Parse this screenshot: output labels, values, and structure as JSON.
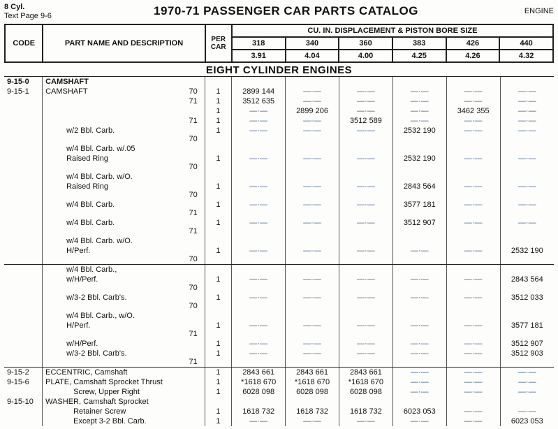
{
  "meta": {
    "cyl": "8 Cyl.",
    "pageref": "Text Page 9-6",
    "title": "1970-71 PASSENGER CAR PARTS CATALOG",
    "engine": "ENGINE"
  },
  "hdr": {
    "code": "CODE",
    "desc": "PART NAME AND DESCRIPTION",
    "per": "PER CAR",
    "disp_title": "CU. IN. DISPLACEMENT & PISTON BORE SIZE",
    "cols": [
      "318",
      "340",
      "360",
      "383",
      "426",
      "440"
    ],
    "bores": [
      "3.91",
      "4.04",
      "4.00",
      "4.25",
      "4.26",
      "4.32"
    ]
  },
  "section_title": "EIGHT CYLINDER ENGINES",
  "group": {
    "code": "9-15-0",
    "name": "CAMSHAFT"
  },
  "rows": [
    {
      "code": "9-15-1",
      "desc": "CAMSHAFT",
      "year": "70",
      "per": "1",
      "c": [
        "2899 144",
        "—·—",
        "—·—",
        "—·—",
        "—·—",
        "—·—"
      ]
    },
    {
      "code": "",
      "desc": "",
      "year": "71",
      "per": "1",
      "c": [
        "3512 635",
        "—·—",
        "—·—",
        "—·—",
        "—·—",
        "—·—"
      ]
    },
    {
      "code": "",
      "desc": "",
      "year": "",
      "per": "1",
      "c": [
        "—·—",
        "2899 206",
        "—·—",
        "—·—",
        "3462 355",
        "—·—"
      ]
    },
    {
      "code": "",
      "desc": "",
      "year": "71",
      "per": "1",
      "c": [
        "—·—",
        "—·—",
        "3512 589",
        "—·—",
        "—·—",
        "—·—"
      ]
    },
    {
      "code": "",
      "desc": "w/2 Bbl. Carb.",
      "indent": 1,
      "year": "70",
      "per": "1",
      "c": [
        "—·—",
        "—·—",
        "—·—",
        "2532 190",
        "—·—",
        "—·—"
      ]
    },
    {
      "code": "",
      "desc": "w/4 Bbl. Carb. w/.05",
      "indent": 1,
      "year": "",
      "per": "",
      "c": [
        "",
        "",
        "",
        "",
        "",
        ""
      ]
    },
    {
      "code": "",
      "desc": "Raised Ring",
      "indent": 1,
      "year": "70",
      "per": "1",
      "c": [
        "—·—",
        "—·—",
        "—·—",
        "2532 190",
        "—·—",
        "—·—"
      ]
    },
    {
      "code": "",
      "desc": "w/4 Bbl. Carb. w/O.",
      "indent": 1,
      "year": "",
      "per": "",
      "c": [
        "",
        "",
        "",
        "",
        "",
        ""
      ]
    },
    {
      "code": "",
      "desc": "Raised Ring",
      "indent": 1,
      "year": "70",
      "per": "1",
      "c": [
        "—·—",
        "—·—",
        "—·—",
        "2843 564",
        "—·—",
        "—·—"
      ]
    },
    {
      "code": "",
      "desc": "w/4 Bbl. Carb.",
      "indent": 1,
      "year": "71",
      "per": "1",
      "c": [
        "—·—",
        "—·—",
        "—·—",
        "3577 181",
        "—·—",
        "—·—"
      ]
    },
    {
      "code": "",
      "desc": "w/4 Bbl. Carb.",
      "indent": 1,
      "year": "71",
      "per": "1",
      "c": [
        "—·—",
        "—·—",
        "—·—",
        "3512 907",
        "—·—",
        "—·—"
      ]
    },
    {
      "code": "",
      "desc": "w/4 Bbl. Carb. w/O.",
      "indent": 1,
      "year": "",
      "per": "",
      "c": [
        "",
        "",
        "",
        "",
        "",
        ""
      ]
    },
    {
      "code": "",
      "desc": "H/Perf.",
      "indent": 1,
      "year": "70",
      "per": "1",
      "c": [
        "—·—",
        "—·—",
        "—·—",
        "—·—",
        "—·—",
        "2532 190"
      ],
      "rule": true
    },
    {
      "code": "",
      "desc": "w/4 Bbl. Carb.,",
      "indent": 1,
      "year": "",
      "per": "",
      "c": [
        "",
        "",
        "",
        "",
        "",
        ""
      ]
    },
    {
      "code": "",
      "desc": "w/H/Perf.",
      "indent": 1,
      "year": "70",
      "per": "1",
      "c": [
        "—·—",
        "—·—",
        "—·—",
        "—·—",
        "—·—",
        "2843 564"
      ]
    },
    {
      "code": "",
      "desc": "w/3-2 Bbl. Carb's.",
      "indent": 1,
      "year": "70",
      "per": "1",
      "c": [
        "—·—",
        "—·—",
        "—·—",
        "—·—",
        "—·—",
        "3512 033"
      ]
    },
    {
      "code": "",
      "desc": "w/4 Bbl. Carb., w/O.",
      "indent": 1,
      "year": "",
      "per": "",
      "c": [
        "",
        "",
        "",
        "",
        "",
        ""
      ]
    },
    {
      "code": "",
      "desc": "H/Perf.",
      "indent": 1,
      "year": "71",
      "per": "1",
      "c": [
        "—·—",
        "—·—",
        "—·—",
        "—·—",
        "—·—",
        "3577 181"
      ]
    },
    {
      "code": "",
      "desc": "w/H/Perf.",
      "indent": 1,
      "year": "",
      "per": "1",
      "c": [
        "—·—",
        "—·—",
        "—·—",
        "—·—",
        "—·—",
        "3512 907"
      ]
    },
    {
      "code": "",
      "desc": "w/3-2 Bbl. Carb's.",
      "indent": 1,
      "year": "71",
      "per": "1",
      "c": [
        "—·—",
        "—·—",
        "—·—",
        "—·—",
        "—·—",
        "3512 903"
      ],
      "rule": true
    },
    {
      "code": "9-15-2",
      "desc": "ECCENTRIC, Camshaft",
      "year": "",
      "per": "1",
      "c": [
        "2843 661",
        "2843 661",
        "2843 661",
        "—·—",
        "—·—",
        "—·—"
      ]
    },
    {
      "code": "9-15-6",
      "desc": "PLATE, Camshaft Sprocket Thrust",
      "year": "",
      "per": "1",
      "c": [
        "*1618 670",
        "*1618 670",
        "*1618 670",
        "—·—",
        "—·—",
        "—·—"
      ]
    },
    {
      "code": "",
      "desc": "Screw, Upper Right",
      "indent": 2,
      "year": "",
      "per": "1",
      "c": [
        "6028 098",
        "6028 098",
        "6028 098",
        "—·—",
        "—·—",
        "—·—"
      ]
    },
    {
      "code": "9-15-10",
      "desc": "WASHER, Camshaft Sprocket",
      "year": "",
      "per": "",
      "c": [
        "",
        "",
        "",
        "",
        "",
        ""
      ]
    },
    {
      "code": "",
      "desc": "Retainer Screw",
      "indent": 2,
      "year": "",
      "per": "1",
      "c": [
        "1618 732",
        "1618 732",
        "1618 732",
        "6023 053",
        "—·—",
        "—·—"
      ]
    },
    {
      "code": "",
      "desc": "Except 3-2 Bbl. Carb.",
      "indent": 2,
      "year": "",
      "per": "1",
      "c": [
        "—·—",
        "—·—",
        "—·—",
        "—·—",
        "—·—",
        "6023 053"
      ]
    }
  ]
}
